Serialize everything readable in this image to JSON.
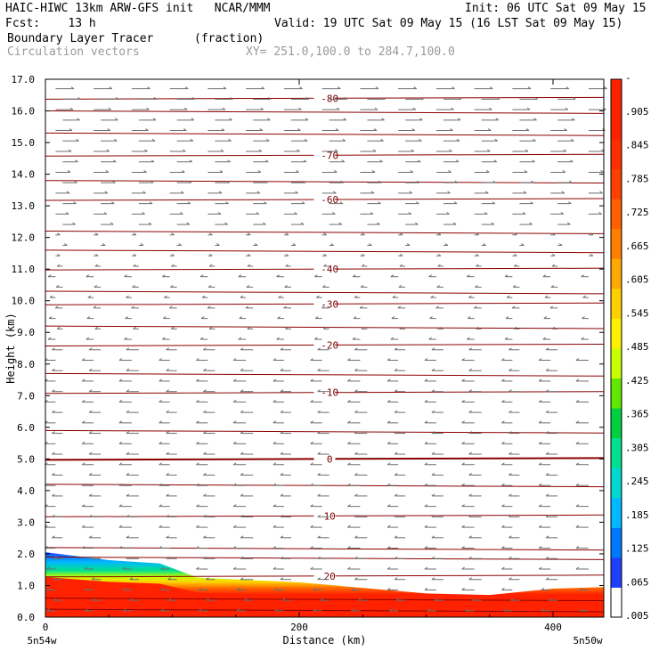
{
  "header": {
    "line1_left": "HAIC-HIWC 13km ARW-GFS init   NCAR/MMM",
    "line1_right": "Init: 06 UTC Sat 09 May 15",
    "line2_left": "Fcst:    13 h",
    "line2_right": "Valid: 19 UTC Sat 09 May 15 (16 LST Sat 09 May 15)",
    "field_name": "Boundary Layer Tracer",
    "field_units": "(fraction)",
    "overlay_name": "Circulation vectors",
    "xy_range": "XY= 251.0,100.0 to 284.7,100.0"
  },
  "colors": {
    "contour": "#8b0000",
    "vector": "#6e6e6e",
    "tracer_high": "#ff2200"
  },
  "chart_data": {
    "type": "heatmap",
    "xlabel": "Distance (km)",
    "ylabel": "Height (km)",
    "xlim": [
      0,
      440
    ],
    "ylim": [
      0,
      17
    ],
    "x_ticks": [
      0,
      200,
      400
    ],
    "y_ticks": [
      "0.0",
      "1.0",
      "2.0",
      "3.0",
      "4.0",
      "5.0",
      "6.0",
      "7.0",
      "8.0",
      "9.0",
      "10.0",
      "11.0",
      "12.0",
      "13.0",
      "14.0",
      "15.0",
      "16.0",
      "17.0"
    ],
    "x_endpoint_labels": [
      "5n54w",
      "5n50w"
    ],
    "tracer_top_km": {
      "x": [
        0,
        50,
        90,
        120,
        200,
        300,
        350,
        400,
        440
      ],
      "y": [
        2.05,
        1.8,
        1.7,
        1.25,
        1.1,
        0.75,
        0.7,
        0.9,
        0.95
      ]
    },
    "temperature_contours": {
      "labels_shown": [
        "-80",
        "-70",
        "-60",
        "-40",
        "-30",
        "-20",
        "-10",
        "0",
        "10",
        "20"
      ],
      "heights_km": {
        "-80": 16.4,
        "-70": 14.6,
        "-60": 13.2,
        "-40": 11.0,
        "-30": 9.9,
        "-20": 8.6,
        "-10": 7.1,
        "0": 5.0,
        "10": 3.2,
        "20": 1.3
      }
    },
    "colorbar": {
      "labels": [
        ".005",
        ".065",
        ".125",
        ".185",
        ".245",
        ".305",
        ".365",
        ".425",
        ".485",
        ".545",
        ".605",
        ".665",
        ".725",
        ".785",
        ".845",
        ".905",
        "-"
      ]
    }
  }
}
